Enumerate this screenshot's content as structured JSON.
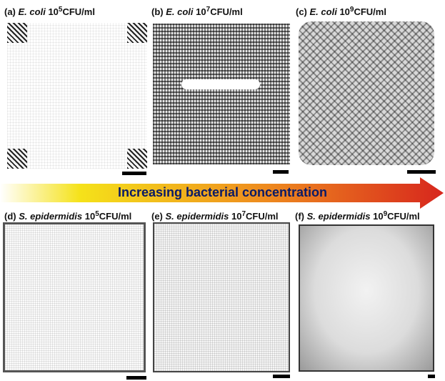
{
  "panels": [
    {
      "id": "a",
      "label": "(a)",
      "organism": "E. coli",
      "base": "10",
      "exp": "5",
      "unit": "CFU/ml"
    },
    {
      "id": "b",
      "label": "(b)",
      "organism": "E. coli",
      "base": "10",
      "exp": "7",
      "unit": "CFU/ml"
    },
    {
      "id": "c",
      "label": "(c)",
      "organism": "E. coli",
      "base": "10",
      "exp": "9",
      "unit": "CFU/ml"
    },
    {
      "id": "d",
      "label": "(d)",
      "organism": "S. epidermidis",
      "base": "10",
      "exp": "5",
      "unit": "CFU/ml"
    },
    {
      "id": "e",
      "label": "(e)",
      "organism": "S. epidermidis",
      "base": "10",
      "exp": "7",
      "unit": "CFU/ml"
    },
    {
      "id": "f",
      "label": "(f)",
      "organism": "S. epidermidis",
      "base": "10",
      "exp": "9",
      "unit": "CFU/ml"
    }
  ],
  "arrow": {
    "label": "Increasing bacterial concentration",
    "gradient_start": "#f5e21a",
    "gradient_end": "#d7261d"
  },
  "colors": {
    "text": "#111111",
    "arrow_text": "#0a1a66",
    "scalebar": "#000000"
  }
}
